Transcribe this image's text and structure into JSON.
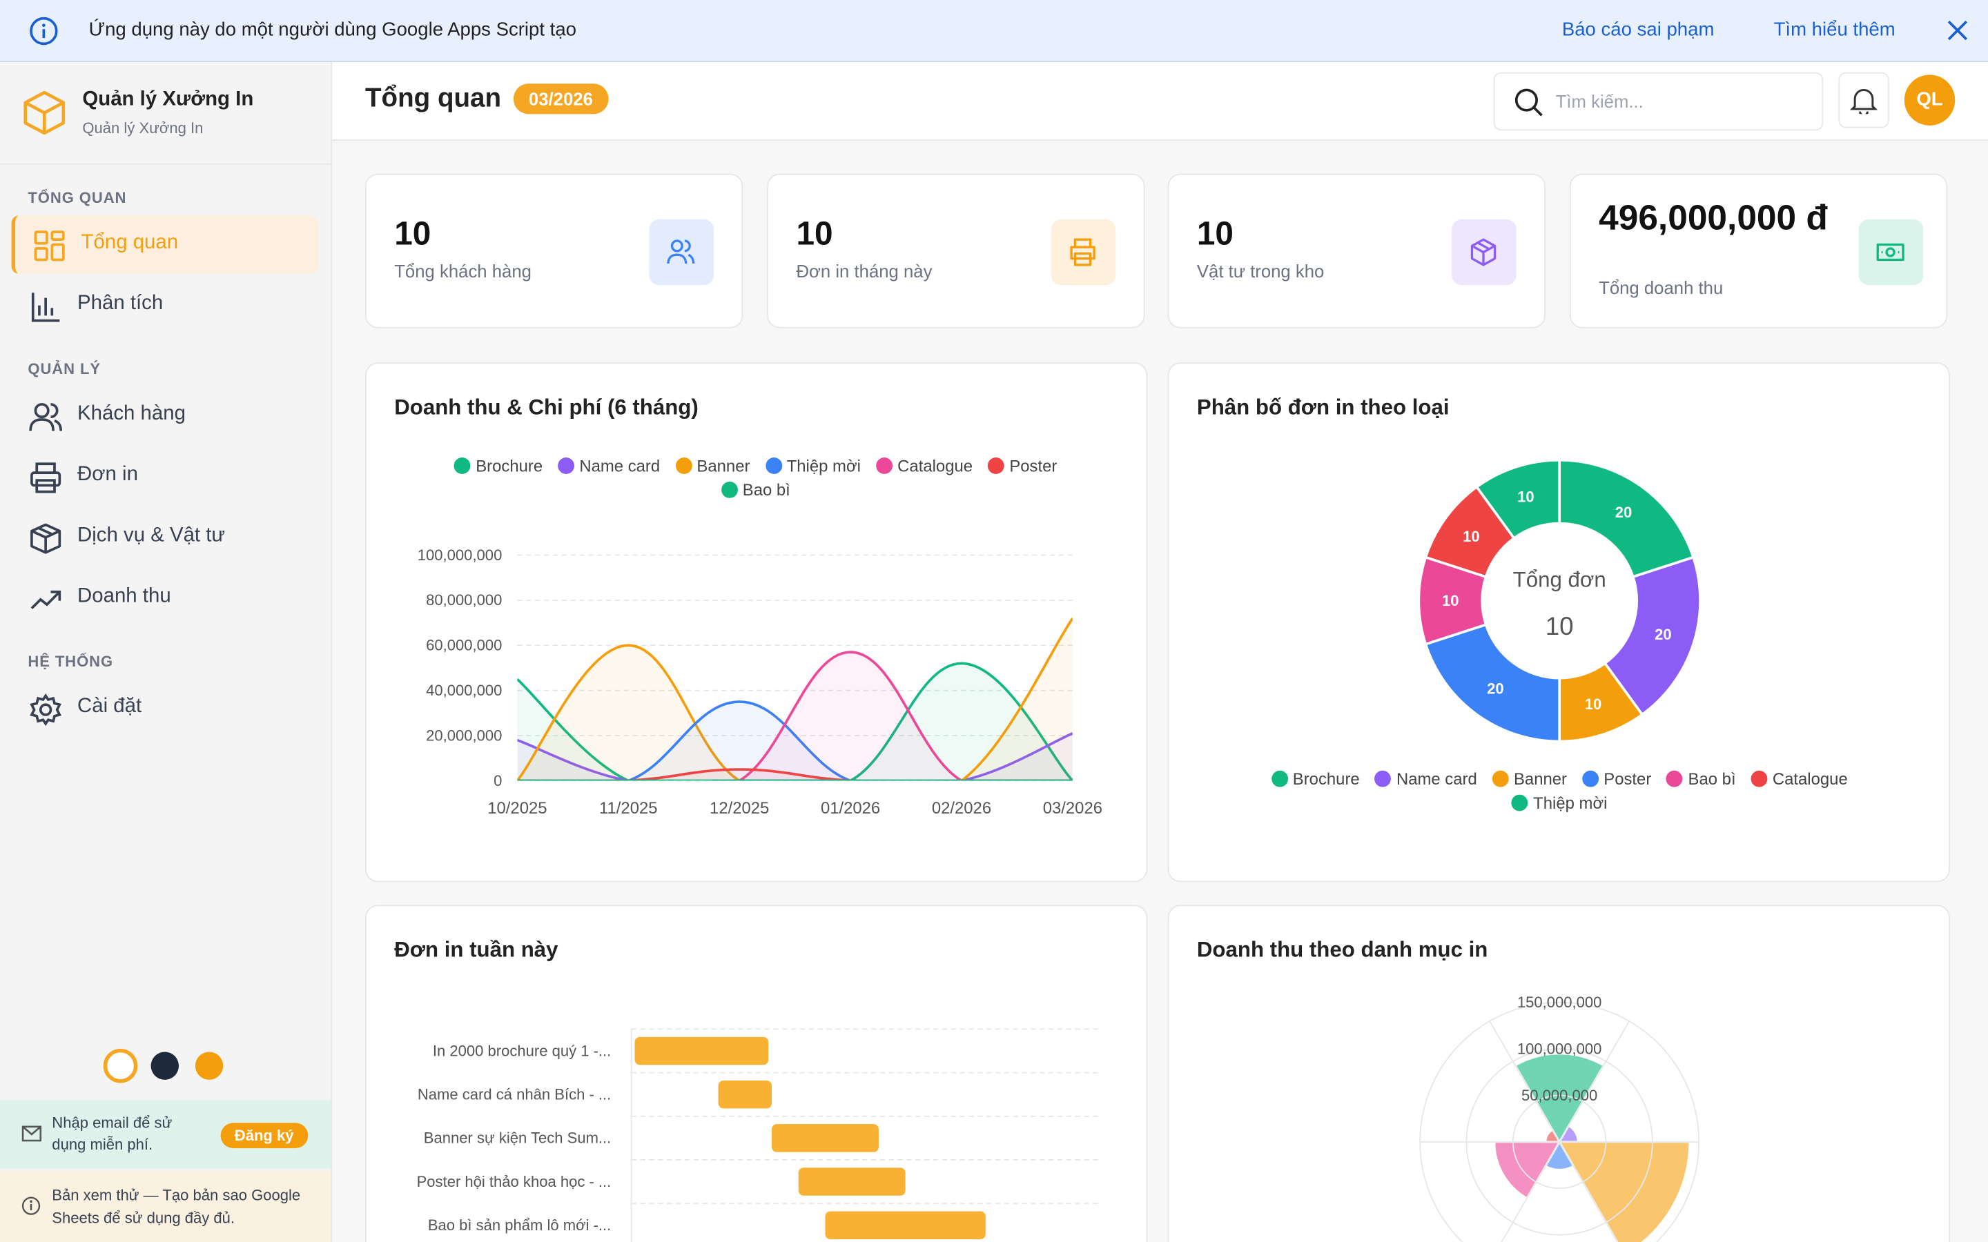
{
  "banner": {
    "text": "Ứng dụng này do một người dùng Google Apps Script tạo",
    "links": [
      "Báo cáo sai phạm",
      "Tìm hiểu thêm"
    ]
  },
  "sidebar": {
    "brand": "Quản lý Xưởng In",
    "brand_sub": "Quản lý Xưởng In",
    "sections": [
      {
        "title": "TỔNG QUAN",
        "items": [
          "Tổng quan",
          "Phân tích"
        ]
      },
      {
        "title": "QUẢN LÝ",
        "items": [
          "Khách hàng",
          "Đơn in",
          "Dịch vụ & Vật tư",
          "Doanh thu"
        ]
      },
      {
        "title": "HỆ THỐNG",
        "items": [
          "Cài đặt"
        ]
      }
    ],
    "signup": {
      "text": "Nhập email để sử dụng miễn phí.",
      "button": "Đăng ký"
    },
    "notice": "Bản xem thử — Tạo bản sao Google Sheets để sử dụng đầy đủ."
  },
  "header": {
    "title": "Tổng quan",
    "badge": "03/2026",
    "search_placeholder": "Tìm kiếm...",
    "avatar": "QL"
  },
  "stats": [
    {
      "value": 10,
      "label": "Tổng khách hàng"
    },
    {
      "value": 10,
      "label": "Đơn in tháng này"
    },
    {
      "value": 10,
      "label": "Vật tư trong kho"
    },
    {
      "value": "496,000,000 đ",
      "label": "Tổng doanh thu"
    }
  ],
  "chart_data": [
    {
      "type": "line",
      "title": "Doanh thu & Chi phí (6 tháng)",
      "categories": [
        "10/2025",
        "11/2025",
        "12/2025",
        "01/2026",
        "02/2026",
        "03/2026"
      ],
      "series": [
        {
          "name": "Brochure",
          "color": "#10b981",
          "values": [
            45000000,
            0,
            0,
            0,
            52000000,
            0
          ]
        },
        {
          "name": "Name card",
          "color": "#8b5cf6",
          "values": [
            18000000,
            0,
            0,
            0,
            0,
            21000000
          ]
        },
        {
          "name": "Banner",
          "color": "#f59e0b",
          "values": [
            0,
            60000000,
            0,
            0,
            0,
            72000000
          ]
        },
        {
          "name": "Thiệp mời",
          "color": "#3b82f6",
          "values": [
            0,
            0,
            35000000,
            0,
            0,
            0
          ]
        },
        {
          "name": "Catalogue",
          "color": "#ec4899",
          "values": [
            0,
            0,
            0,
            57000000,
            0,
            0
          ]
        },
        {
          "name": "Poster",
          "color": "#ef4444",
          "values": [
            0,
            0,
            5000000,
            0,
            0,
            0
          ]
        },
        {
          "name": "Bao bì",
          "color": "#10b981",
          "values": [
            0,
            0,
            0,
            0,
            0,
            0
          ]
        }
      ],
      "ylim": [
        0,
        100000000
      ],
      "yticks": [
        0,
        {
          "value": 20000000,
          "label": "20,000,000"
        },
        {
          "value": 40000000,
          "label": "40,000,000"
        },
        {
          "value": 60000000,
          "label": "60,000,000"
        },
        {
          "value": 80000000,
          "label": "80,000,000"
        },
        {
          "value": 100000000,
          "label": "100,000,000"
        }
      ],
      "grid": true
    },
    {
      "type": "doughnut",
      "title": "Phân bố đơn in theo loại",
      "center_label": "Tổng đơn",
      "center_value": 10,
      "categories": [
        "Brochure",
        "Name card",
        "Banner",
        "Poster",
        "Bao bì",
        "Catalogue",
        "Thiệp mời"
      ],
      "values": [
        20,
        20,
        10,
        20,
        10,
        10,
        10
      ],
      "colors": [
        "#10b981",
        "#8b5cf6",
        "#f59e0b",
        "#3b82f6",
        "#ec4899",
        "#ef4444",
        "#10b981"
      ]
    },
    {
      "type": "hbar-range",
      "title": "Đơn in tuần này",
      "color": "#f8b132",
      "categories": [
        "In 2000 brochure quý 1 -...",
        "Name card cá nhân Bích - ...",
        "Banner sự kiện Tech Sum...",
        "Poster hội thảo khoa học - ...",
        "Bao bì sản phẩm lô mới -..."
      ],
      "values": [
        [
          0.05,
          2.05
        ],
        [
          1.3,
          2.1
        ],
        [
          2.1,
          3.7
        ],
        [
          2.5,
          4.1
        ],
        [
          2.9,
          5.3
        ]
      ],
      "xlim": [
        0,
        7
      ],
      "grid": true
    },
    {
      "type": "polar",
      "title": "Doanh thu theo danh mục in",
      "values": [
        95000000,
        20000000,
        140000000,
        30000000,
        70000000,
        15000000
      ],
      "colors": [
        "#10b981",
        "#8b5cf6",
        "#f59e0b",
        "#3b82f6",
        "#ec4899",
        "#ef4444"
      ],
      "rlim": [
        0,
        150000000
      ],
      "rticks": [
        {
          "value": 50000000,
          "label": "50,000,000"
        },
        {
          "value": 100000000,
          "label": "100,000,000"
        },
        {
          "value": 150000000,
          "label": "150,000,000"
        }
      ],
      "grid": true
    }
  ]
}
